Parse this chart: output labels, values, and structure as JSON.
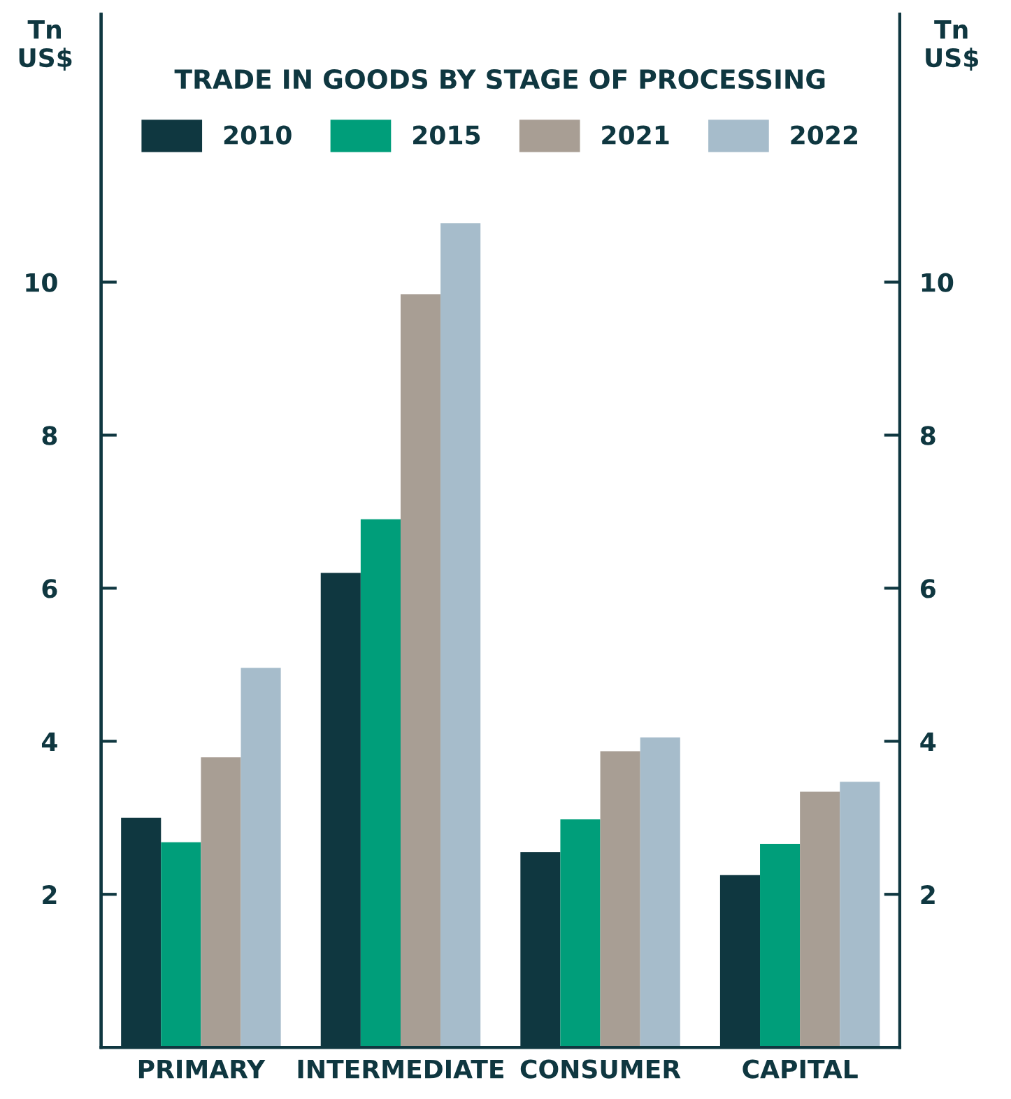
{
  "chart_data": {
    "type": "bar",
    "title": "TRADE IN GOODS BY STAGE OF PROCESSING",
    "ylabel": "Tn\nUS$",
    "y2label": "Tn\nUS$",
    "categories": [
      "PRIMARY",
      "INTERMEDIATE",
      "CONSUMER",
      "CAPITAL"
    ],
    "series": [
      {
        "name": "2010",
        "color": "#0f3740",
        "values": [
          3.0,
          6.2,
          2.55,
          2.25
        ]
      },
      {
        "name": "2015",
        "color": "#009e7a",
        "values": [
          2.68,
          6.9,
          2.98,
          2.66
        ]
      },
      {
        "name": "2021",
        "color": "#a89e94",
        "values": [
          3.79,
          9.84,
          3.87,
          3.34
        ]
      },
      {
        "name": "2022",
        "color": "#a6bccb",
        "values": [
          4.96,
          10.77,
          4.05,
          3.47
        ]
      }
    ],
    "ylim": [
      0,
      13.5
    ],
    "yticks": [
      2,
      4,
      6,
      8,
      10
    ],
    "y2lim": [
      0,
      13.5
    ],
    "y2ticks": [
      2,
      4,
      6,
      8,
      10
    ],
    "grid": false,
    "legend": "top"
  }
}
